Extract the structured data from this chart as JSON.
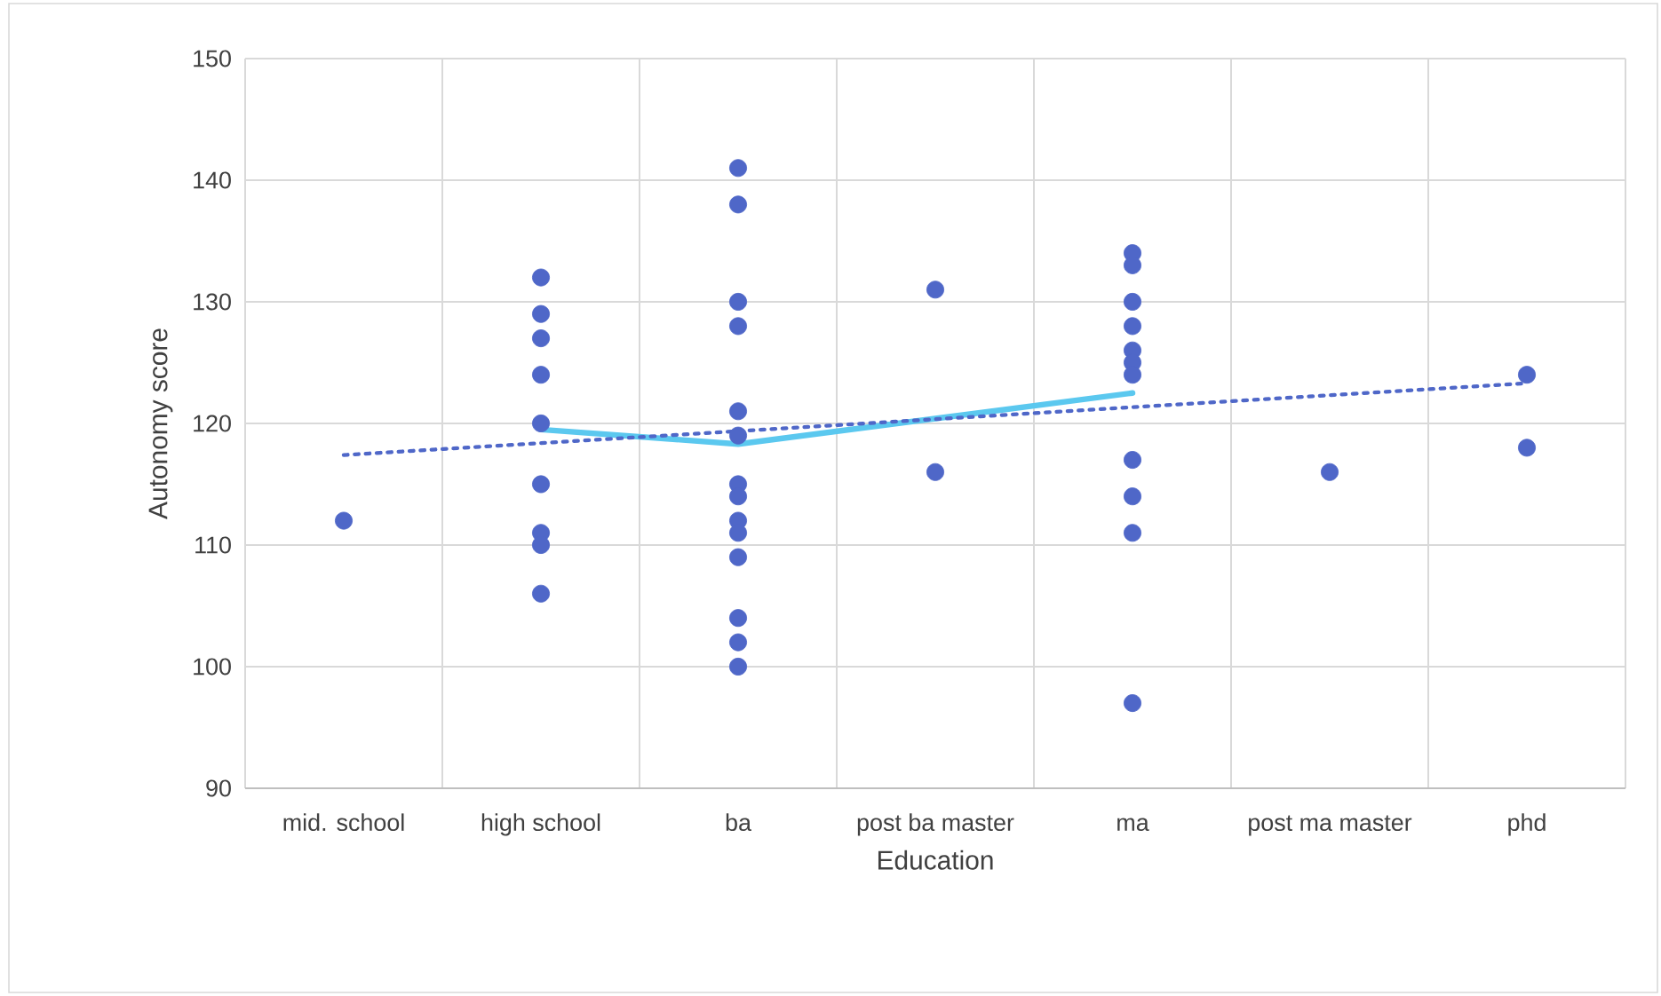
{
  "chart_data": {
    "type": "scatter",
    "xlabel": "Education",
    "ylabel": "Autonomy score",
    "categories": [
      "mid. school",
      "high school",
      "ba",
      "post ba master",
      "ma",
      "post ma master",
      "phd"
    ],
    "ylim": [
      90,
      150
    ],
    "yticks": [
      90,
      100,
      110,
      120,
      130,
      140,
      150
    ],
    "grid": true,
    "marker": "circle",
    "series": [
      {
        "color": "#4f67c8",
        "x": [
          "mid. school",
          "high school",
          "high school",
          "high school",
          "high school",
          "high school",
          "high school",
          "high school",
          "high school",
          "high school",
          "ba",
          "ba",
          "ba",
          "ba",
          "ba",
          "ba",
          "ba",
          "ba",
          "ba",
          "ba",
          "ba",
          "ba",
          "ba",
          "ba",
          "post ba master",
          "post ba master",
          "ma",
          "ma",
          "ma",
          "ma",
          "ma",
          "ma",
          "ma",
          "ma",
          "ma",
          "ma",
          "ma",
          "post ma master",
          "phd",
          "phd"
        ],
        "values": [
          112,
          132,
          129,
          127,
          124,
          120,
          115,
          111,
          110,
          106,
          141,
          138,
          130,
          128,
          121,
          119,
          115,
          114,
          112,
          111,
          109,
          104,
          102,
          100,
          131,
          116,
          134,
          133,
          130,
          128,
          126,
          125,
          124,
          117,
          114,
          111,
          97,
          116,
          124,
          118
        ]
      },
      {
        "type": "line",
        "color": "#5bc8ef",
        "line_style": "solid",
        "marker": "none",
        "x": [
          "high school",
          "ba",
          "post ba master",
          "ma"
        ],
        "values": [
          119.5,
          118.3,
          120.4,
          122.5
        ]
      },
      {
        "type": "line",
        "color": "#4f67c8",
        "line_style": "dotted",
        "marker": "none",
        "x": [
          "mid. school",
          "phd"
        ],
        "values": [
          117.4,
          123.3
        ]
      }
    ]
  }
}
